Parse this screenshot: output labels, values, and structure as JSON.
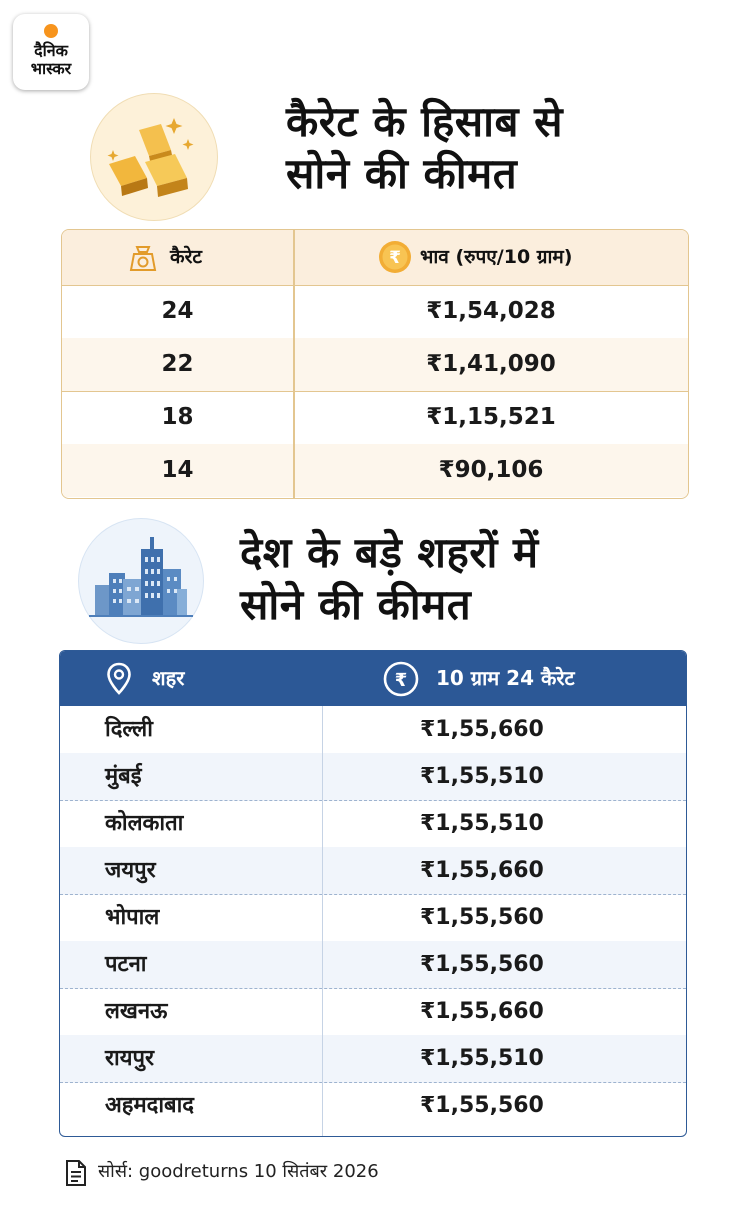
{
  "logo": {
    "line1": "दैनिक",
    "line2": "भास्कर"
  },
  "section1": {
    "title_line1": "कैरेट के हिसाब से",
    "title_line2": "सोने की कीमत",
    "header_karat": "कैरेट",
    "header_rate": "भाव (रुपए/10 ग्राम)",
    "rows": [
      {
        "karat": "24",
        "price": "₹1,54,028"
      },
      {
        "karat": "22",
        "price": "₹1,41,090"
      },
      {
        "karat": "18",
        "price": "₹1,15,521"
      },
      {
        "karat": "14",
        "price": "₹90,106"
      }
    ]
  },
  "section2": {
    "title_line1": "देश के बड़े शहरों में",
    "title_line2": "सोने की कीमत",
    "header_city": "शहर",
    "header_rate": "10 ग्राम 24 कैरेट",
    "rows": [
      {
        "city": "दिल्ली",
        "price": "₹1,55,660"
      },
      {
        "city": "मुंबई",
        "price": "₹1,55,510"
      },
      {
        "city": "कोलकाता",
        "price": "₹1,55,510"
      },
      {
        "city": "जयपुर",
        "price": "₹1,55,660"
      },
      {
        "city": "भोपाल",
        "price": "₹1,55,560"
      },
      {
        "city": "पटना",
        "price": "₹1,55,560"
      },
      {
        "city": "लखनऊ",
        "price": "₹1,55,660"
      },
      {
        "city": "रायपुर",
        "price": "₹1,55,510"
      },
      {
        "city": "अहमदाबाद",
        "price": "₹1,55,560"
      }
    ]
  },
  "source": "सोर्स: goodreturns 10 सितंबर 2026",
  "icons": {
    "gold": "gold-bars-icon",
    "scale": "weighing-scale-icon",
    "rupee": "rupee-coin-icon",
    "buildings": "city-buildings-icon",
    "location": "location-pin-icon",
    "document": "document-icon"
  },
  "colors": {
    "gold_accent": "#f0a72a",
    "table_border_gold": "#e3c690",
    "city_header_blue": "#2c5896"
  }
}
